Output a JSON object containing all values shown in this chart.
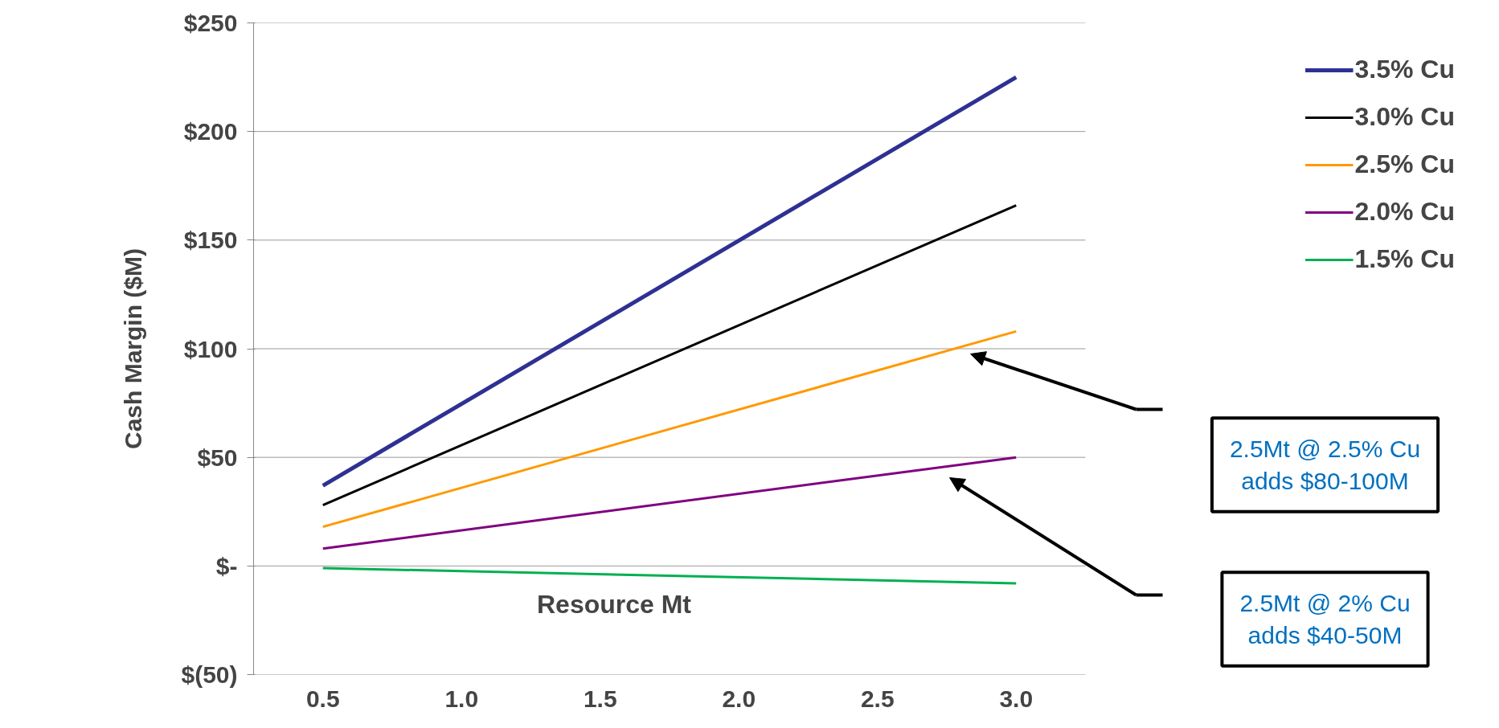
{
  "chart_data": {
    "type": "line",
    "ylabel": "Cash Margin ($M)",
    "xlabel": "Resource Mt",
    "x": [
      0.5,
      3.0
    ],
    "series": [
      {
        "name": "3.5% Cu",
        "color": "#2e3192",
        "values": [
          37,
          225
        ]
      },
      {
        "name": "3.0% Cu",
        "color": "#000000",
        "values": [
          28,
          166
        ]
      },
      {
        "name": "2.5% Cu",
        "color": "#ff9900",
        "values": [
          18,
          108
        ]
      },
      {
        "name": "2.0% Cu",
        "color": "#800080",
        "values": [
          8,
          50
        ]
      },
      {
        "name": "1.5% Cu",
        "color": "#00b050",
        "values": [
          -1,
          -8
        ]
      }
    ],
    "xlim": [
      0.25,
      3.25
    ],
    "xticks": [
      {
        "value": 0.5,
        "label": "0.5"
      },
      {
        "value": 1,
        "label": "1.0"
      },
      {
        "value": 1.5,
        "label": "1.5"
      },
      {
        "value": 2,
        "label": "2.0"
      },
      {
        "value": 2.5,
        "label": "2.5"
      },
      {
        "value": 3,
        "label": "3.0"
      }
    ],
    "ylim": [
      -50,
      250
    ],
    "yticks": [
      {
        "value": -50,
        "label": "$(50)"
      },
      {
        "value": 0,
        "label": "$-"
      },
      {
        "value": 50,
        "label": "$50"
      },
      {
        "value": 100,
        "label": "$100"
      },
      {
        "value": 150,
        "label": "$150"
      },
      {
        "value": 200,
        "label": "$200"
      },
      {
        "value": 250,
        "label": "$250"
      }
    ],
    "grid": "y",
    "legend": "top right",
    "marker": "none",
    "line_style": "solid",
    "annotations": [
      "2.5Mt @ 2.5% Cu\nadds $80-100M",
      "2.5Mt @ 2% Cu\nadds $40-50M"
    ]
  }
}
